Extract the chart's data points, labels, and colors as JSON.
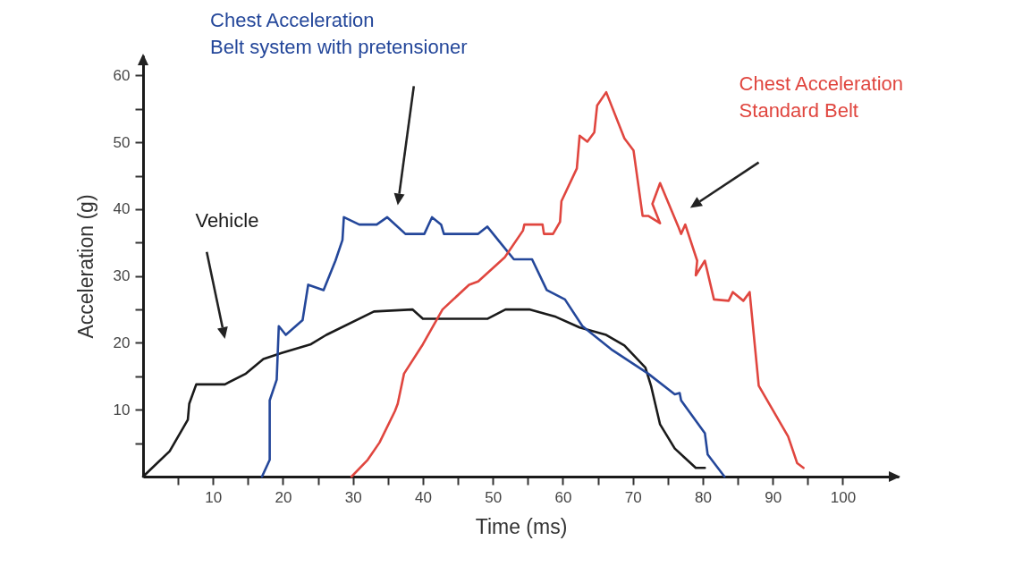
{
  "chart_data": {
    "type": "line",
    "xlabel": "Time (ms)",
    "ylabel": "Acceleration (g)",
    "xlim": [
      0,
      108
    ],
    "ylim": [
      0,
      63
    ],
    "xticks": [
      {
        "value": 5,
        "label": null
      },
      10,
      {
        "value": 15,
        "label": null
      },
      20,
      {
        "value": 25,
        "label": null
      },
      30,
      {
        "value": 35,
        "label": null
      },
      40,
      {
        "value": 45,
        "label": null
      },
      50,
      {
        "value": 55,
        "label": null
      },
      60,
      {
        "value": 65,
        "label": null
      },
      70,
      {
        "value": 75,
        "label": null
      },
      80,
      {
        "value": 85,
        "label": null
      },
      90,
      {
        "value": 95,
        "label": null
      },
      100
    ],
    "yticks": [
      {
        "value": 5,
        "label": null
      },
      10,
      {
        "value": 15,
        "label": null
      },
      20,
      {
        "value": 25,
        "label": null
      },
      30,
      {
        "value": 35,
        "label": null
      },
      40,
      {
        "value": 45,
        "label": null
      },
      50,
      {
        "value": 55,
        "label": null
      },
      60
    ],
    "grid": false,
    "legend": false,
    "marker": "none",
    "line_style": "solid",
    "series": [
      {
        "name": "Vehicle",
        "color": "#1a1a1a",
        "x": [
          0,
          3.8,
          6.4,
          6.6,
          7.6,
          11.7,
          14.7,
          17.2,
          19.8,
          24,
          26.2,
          33,
          38.5,
          40,
          49.2,
          51.8,
          55.2,
          59,
          62.4,
          66.2,
          68.8,
          71.8,
          72.6,
          73.9,
          76,
          79,
          80.3
        ],
        "values": [
          0,
          3.8,
          8.5,
          10.9,
          13.8,
          13.8,
          15.4,
          17.6,
          18.5,
          19.8,
          21.2,
          24.7,
          25,
          23.6,
          23.6,
          25,
          25,
          23.9,
          22.3,
          21.2,
          19.6,
          16.3,
          13.6,
          7.8,
          4.2,
          1.3,
          1.3
        ]
      },
      {
        "name": "Chest Acceleration\nBelt system with pretensioner",
        "color": "#24479a",
        "x": [
          17,
          18.1,
          18.1,
          19.1,
          19.4,
          20.4,
          22.8,
          23.6,
          25.8,
          27.5,
          28.5,
          28.7,
          30.9,
          33.4,
          34.9,
          37.5,
          40.2,
          41.3,
          42.6,
          43,
          47.9,
          49.2,
          50.9,
          53,
          55.6,
          57.7,
          60.3,
          62.8,
          67.1,
          72.2,
          76,
          76.7,
          76.9,
          80.3,
          80.7,
          83.1
        ],
        "values": [
          0,
          2.5,
          11.4,
          14.5,
          22.5,
          21.2,
          23.4,
          28.7,
          27.9,
          32.3,
          35.4,
          38.8,
          37.7,
          37.7,
          38.8,
          36.3,
          36.3,
          38.8,
          37.7,
          36.3,
          36.3,
          37.4,
          35.2,
          32.5,
          32.5,
          27.9,
          26.5,
          22.5,
          18.9,
          15.4,
          12.3,
          12.5,
          11.4,
          6.5,
          3.3,
          0
        ]
      },
      {
        "name": "Chest Acceleration\nStandard Belt",
        "color": "#e0463f",
        "x": [
          29.8,
          32.1,
          33.8,
          36,
          36.4,
          37.3,
          40,
          42.8,
          46.6,
          47.9,
          51.7,
          54.3,
          54.5,
          57.1,
          57.3,
          58.6,
          59.6,
          59.8,
          62,
          62.4,
          63.5,
          64.5,
          64.9,
          66.2,
          68.8,
          70.1,
          71.4,
          72.2,
          73.9,
          72.8,
          73.9,
          76.5,
          76.9,
          77.5,
          79.2,
          79,
          80.3,
          81.6,
          83.7,
          84.3,
          85.8,
          86.7,
          88,
          92.2,
          93.5,
          94.4
        ],
        "values": [
          0,
          2.5,
          5.1,
          9.8,
          10.9,
          15.4,
          19.8,
          25,
          28.7,
          29.2,
          32.8,
          36.8,
          37.7,
          37.7,
          36.3,
          36.3,
          38.1,
          41.2,
          46.1,
          51,
          50.1,
          51.5,
          55.5,
          57.5,
          50.6,
          48.8,
          39,
          39,
          37.9,
          40.8,
          43.9,
          37.4,
          36.3,
          37.7,
          32.3,
          30.1,
          32.3,
          26.5,
          26.3,
          27.6,
          26.3,
          27.6,
          13.6,
          6,
          2,
          1.3
        ]
      }
    ]
  }
}
